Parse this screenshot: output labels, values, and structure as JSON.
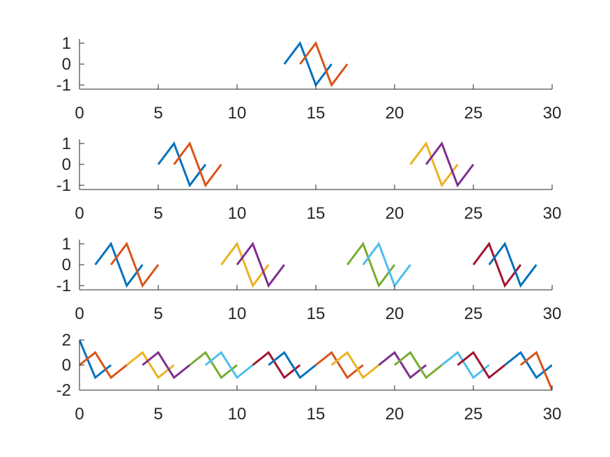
{
  "chart_data": [
    {
      "type": "line",
      "xlim": [
        0,
        30
      ],
      "ylim": [
        -1.2,
        1.2
      ],
      "xticks": [
        0,
        5,
        10,
        15,
        20,
        25,
        30
      ],
      "yticks": [
        1,
        0,
        -1
      ],
      "xtick_labels": [
        "0",
        "5",
        "10",
        "15",
        "20",
        "25",
        "30"
      ],
      "ytick_labels": [
        "1",
        "0",
        "-1"
      ],
      "grid": false,
      "series": [
        {
          "color": "#0072BD",
          "x": [
            13,
            14,
            15,
            16
          ],
          "y": [
            0,
            1,
            -1,
            0
          ]
        },
        {
          "color": "#D95319",
          "x": [
            14,
            15,
            16,
            17
          ],
          "y": [
            0,
            1,
            -1,
            0
          ]
        }
      ]
    },
    {
      "type": "line",
      "xlim": [
        0,
        30
      ],
      "ylim": [
        -1.2,
        1.2
      ],
      "xticks": [
        0,
        5,
        10,
        15,
        20,
        25,
        30
      ],
      "yticks": [
        1,
        0,
        -1
      ],
      "xtick_labels": [
        "0",
        "5",
        "10",
        "15",
        "20",
        "25",
        "30"
      ],
      "ytick_labels": [
        "1",
        "0",
        "-1"
      ],
      "grid": false,
      "series": [
        {
          "color": "#0072BD",
          "x": [
            5,
            6,
            7,
            8
          ],
          "y": [
            0,
            1,
            -1,
            0
          ]
        },
        {
          "color": "#D95319",
          "x": [
            6,
            7,
            8,
            9
          ],
          "y": [
            0,
            1,
            -1,
            0
          ]
        },
        {
          "color": "#EDB120",
          "x": [
            21,
            22,
            23,
            24
          ],
          "y": [
            0,
            1,
            -1,
            0
          ]
        },
        {
          "color": "#7E2F8E",
          "x": [
            22,
            23,
            24,
            25
          ],
          "y": [
            0,
            1,
            -1,
            0
          ]
        }
      ]
    },
    {
      "type": "line",
      "xlim": [
        0,
        30
      ],
      "ylim": [
        -1.2,
        1.2
      ],
      "xticks": [
        0,
        5,
        10,
        15,
        20,
        25,
        30
      ],
      "yticks": [
        1,
        0,
        -1
      ],
      "xtick_labels": [
        "0",
        "5",
        "10",
        "15",
        "20",
        "25",
        "30"
      ],
      "ytick_labels": [
        "1",
        "0",
        "-1"
      ],
      "grid": false,
      "series": [
        {
          "color": "#0072BD",
          "x": [
            1,
            2,
            3,
            4
          ],
          "y": [
            0,
            1,
            -1,
            0
          ]
        },
        {
          "color": "#D95319",
          "x": [
            2,
            3,
            4,
            5
          ],
          "y": [
            0,
            1,
            -1,
            0
          ]
        },
        {
          "color": "#EDB120",
          "x": [
            9,
            10,
            11,
            12
          ],
          "y": [
            0,
            1,
            -1,
            0
          ]
        },
        {
          "color": "#7E2F8E",
          "x": [
            10,
            11,
            12,
            13
          ],
          "y": [
            0,
            1,
            -1,
            0
          ]
        },
        {
          "color": "#77AC30",
          "x": [
            17,
            18,
            19,
            20
          ],
          "y": [
            0,
            1,
            -1,
            0
          ]
        },
        {
          "color": "#4DBEEE",
          "x": [
            18,
            19,
            20,
            21
          ],
          "y": [
            0,
            1,
            -1,
            0
          ]
        },
        {
          "color": "#A2142F",
          "x": [
            25,
            26,
            27,
            28
          ],
          "y": [
            0,
            1,
            -1,
            0
          ]
        },
        {
          "color": "#0072BD",
          "x": [
            26,
            27,
            28,
            29
          ],
          "y": [
            0,
            1,
            -1,
            0
          ]
        }
      ]
    },
    {
      "type": "line",
      "xlim": [
        0,
        30
      ],
      "ylim": [
        -2,
        2
      ],
      "xticks": [
        0,
        5,
        10,
        15,
        20,
        25,
        30
      ],
      "yticks": [
        2,
        0,
        -2
      ],
      "xtick_labels": [
        "0",
        "5",
        "10",
        "15",
        "20",
        "25",
        "30"
      ],
      "ytick_labels": [
        "2",
        "0",
        "-2"
      ],
      "grid": false,
      "series": [
        {
          "color": "#0072BD",
          "x": [
            -1,
            0,
            1,
            2
          ],
          "y": [
            0,
            2,
            -1,
            0
          ]
        },
        {
          "color": "#D95319",
          "x": [
            0,
            1,
            2,
            3
          ],
          "y": [
            0,
            1,
            -1,
            0
          ]
        },
        {
          "color": "#EDB120",
          "x": [
            3,
            4,
            5,
            6
          ],
          "y": [
            0,
            1,
            -1,
            0
          ]
        },
        {
          "color": "#7E2F8E",
          "x": [
            4,
            5,
            6,
            7
          ],
          "y": [
            0,
            1,
            -1,
            0
          ]
        },
        {
          "color": "#77AC30",
          "x": [
            7,
            8,
            9,
            10
          ],
          "y": [
            0,
            1,
            -1,
            0
          ]
        },
        {
          "color": "#4DBEEE",
          "x": [
            8,
            9,
            10,
            11
          ],
          "y": [
            0,
            1,
            -1,
            0
          ]
        },
        {
          "color": "#A2142F",
          "x": [
            11,
            12,
            13,
            14
          ],
          "y": [
            0,
            1,
            -1,
            0
          ]
        },
        {
          "color": "#0072BD",
          "x": [
            12,
            13,
            14,
            15
          ],
          "y": [
            0,
            1,
            -1,
            0
          ]
        },
        {
          "color": "#D95319",
          "x": [
            15,
            16,
            17,
            18
          ],
          "y": [
            0,
            1,
            -1,
            0
          ]
        },
        {
          "color": "#EDB120",
          "x": [
            16,
            17,
            18,
            19
          ],
          "y": [
            0,
            1,
            -1,
            0
          ]
        },
        {
          "color": "#7E2F8E",
          "x": [
            19,
            20,
            21,
            22
          ],
          "y": [
            0,
            1,
            -1,
            0
          ]
        },
        {
          "color": "#77AC30",
          "x": [
            20,
            21,
            22,
            23
          ],
          "y": [
            0,
            1,
            -1,
            0
          ]
        },
        {
          "color": "#4DBEEE",
          "x": [
            23,
            24,
            25,
            26
          ],
          "y": [
            0,
            1,
            -1,
            0
          ]
        },
        {
          "color": "#A2142F",
          "x": [
            24,
            25,
            26,
            27
          ],
          "y": [
            0,
            1,
            -1,
            0
          ]
        },
        {
          "color": "#0072BD",
          "x": [
            27,
            28,
            29,
            30
          ],
          "y": [
            0,
            1,
            -1,
            0
          ]
        },
        {
          "color": "#D95319",
          "x": [
            28,
            29,
            30,
            31
          ],
          "y": [
            0,
            1,
            -2,
            0
          ]
        }
      ]
    }
  ]
}
